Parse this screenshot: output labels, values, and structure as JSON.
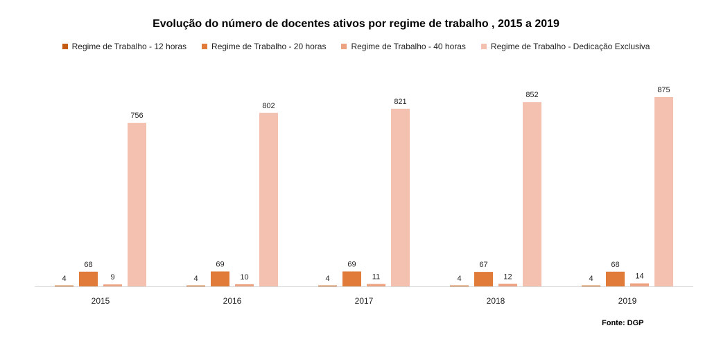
{
  "chart_data": {
    "type": "bar",
    "title": "Evolução do número de docentes ativos por regime de trabalho , 2015 a 2019",
    "categories": [
      "2015",
      "2016",
      "2017",
      "2018",
      "2019"
    ],
    "series": [
      {
        "name": "Regime de Trabalho - 12 horas",
        "values": [
          4,
          4,
          4,
          4,
          4
        ],
        "color": "#C55A11"
      },
      {
        "name": "Regime de Trabalho - 20 horas",
        "values": [
          68,
          69,
          69,
          67,
          68
        ],
        "color": "#E07B39"
      },
      {
        "name": "Regime de Trabalho - 40 horas",
        "values": [
          9,
          10,
          11,
          12,
          14
        ],
        "color": "#EDA282"
      },
      {
        "name": "Regime de Trabalho - Dedicação Exclusiva",
        "values": [
          756,
          802,
          821,
          852,
          875
        ],
        "color": "#F4C0B0"
      }
    ],
    "ylim": [
      0,
      875
    ],
    "xlabel": "",
    "ylabel": "",
    "grid": false,
    "legend_position": "top"
  },
  "source": "Fonte: DGP"
}
